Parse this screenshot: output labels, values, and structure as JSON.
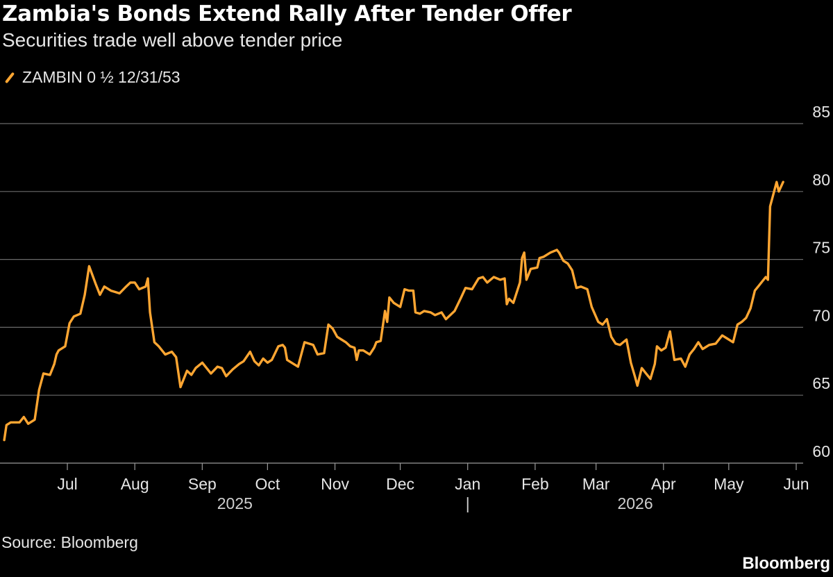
{
  "chart_data": {
    "type": "line",
    "title": "Zambia's Bonds Extend Rally After Tender Offer",
    "subtitle": "Securities trade well above tender price",
    "source": "Source: Bloomberg",
    "brand": "Bloomberg",
    "series": [
      {
        "name": "ZAMBIN 0 ½ 12/31/53",
        "color": "#ffa632",
        "values": [
          [
            "2025-06-02",
            61.7
          ],
          [
            "2025-06-03",
            62.8
          ],
          [
            "2025-06-05",
            63.0
          ],
          [
            "2025-06-09",
            63.0
          ],
          [
            "2025-06-11",
            63.4
          ],
          [
            "2025-06-13",
            62.9
          ],
          [
            "2025-06-16",
            63.2
          ],
          [
            "2025-06-18",
            65.4
          ],
          [
            "2025-06-20",
            66.6
          ],
          [
            "2025-06-23",
            66.5
          ],
          [
            "2025-06-25",
            67.3
          ],
          [
            "2025-06-26",
            68.0
          ],
          [
            "2025-06-27",
            68.3
          ],
          [
            "2025-06-30",
            68.6
          ],
          [
            "2025-07-02",
            70.3
          ],
          [
            "2025-07-04",
            70.8
          ],
          [
            "2025-07-07",
            71.0
          ],
          [
            "2025-07-09",
            72.4
          ],
          [
            "2025-07-11",
            74.5
          ],
          [
            "2025-07-14",
            73.2
          ],
          [
            "2025-07-16",
            72.4
          ],
          [
            "2025-07-18",
            73.0
          ],
          [
            "2025-07-21",
            72.7
          ],
          [
            "2025-07-23",
            72.6
          ],
          [
            "2025-07-25",
            72.5
          ],
          [
            "2025-07-28",
            73.0
          ],
          [
            "2025-07-30",
            73.3
          ],
          [
            "2025-08-01",
            73.3
          ],
          [
            "2025-08-03",
            72.8
          ],
          [
            "2025-08-06",
            73.0
          ],
          [
            "2025-08-07",
            73.6
          ],
          [
            "2025-08-08",
            71.1
          ],
          [
            "2025-08-10",
            68.9
          ],
          [
            "2025-08-12",
            68.6
          ],
          [
            "2025-08-15",
            68.0
          ],
          [
            "2025-08-18",
            68.2
          ],
          [
            "2025-08-20",
            67.8
          ],
          [
            "2025-08-22",
            65.6
          ],
          [
            "2025-08-25",
            66.8
          ],
          [
            "2025-08-27",
            66.5
          ],
          [
            "2025-08-29",
            67.0
          ],
          [
            "2025-09-01",
            67.4
          ],
          [
            "2025-09-03",
            67.0
          ],
          [
            "2025-09-05",
            66.6
          ],
          [
            "2025-09-08",
            67.1
          ],
          [
            "2025-09-10",
            67.0
          ],
          [
            "2025-09-12",
            66.4
          ],
          [
            "2025-09-15",
            66.9
          ],
          [
            "2025-09-18",
            67.3
          ],
          [
            "2025-09-20",
            67.5
          ],
          [
            "2025-09-23",
            68.2
          ],
          [
            "2025-09-25",
            67.5
          ],
          [
            "2025-09-27",
            67.2
          ],
          [
            "2025-09-29",
            67.7
          ],
          [
            "2025-10-01",
            67.4
          ],
          [
            "2025-10-03",
            67.6
          ],
          [
            "2025-10-06",
            68.6
          ],
          [
            "2025-10-08",
            68.7
          ],
          [
            "2025-10-09",
            68.5
          ],
          [
            "2025-10-10",
            67.6
          ],
          [
            "2025-10-13",
            67.3
          ],
          [
            "2025-10-15",
            67.1
          ],
          [
            "2025-10-18",
            68.9
          ],
          [
            "2025-10-22",
            68.7
          ],
          [
            "2025-10-24",
            68.0
          ],
          [
            "2025-10-27",
            68.1
          ],
          [
            "2025-10-29",
            70.2
          ],
          [
            "2025-10-31",
            69.9
          ],
          [
            "2025-11-02",
            69.3
          ],
          [
            "2025-11-04",
            69.1
          ],
          [
            "2025-11-06",
            68.9
          ],
          [
            "2025-11-08",
            68.6
          ],
          [
            "2025-11-10",
            68.5
          ],
          [
            "2025-11-11",
            67.6
          ],
          [
            "2025-11-12",
            68.3
          ],
          [
            "2025-11-14",
            68.3
          ],
          [
            "2025-11-17",
            68.0
          ],
          [
            "2025-11-19",
            68.5
          ],
          [
            "2025-11-20",
            68.9
          ],
          [
            "2025-11-22",
            69.0
          ],
          [
            "2025-11-24",
            71.2
          ],
          [
            "2025-11-25",
            70.4
          ],
          [
            "2025-11-26",
            72.2
          ],
          [
            "2025-11-28",
            71.8
          ],
          [
            "2025-12-01",
            71.5
          ],
          [
            "2025-12-03",
            72.8
          ],
          [
            "2025-12-05",
            72.7
          ],
          [
            "2025-12-07",
            72.7
          ],
          [
            "2025-12-08",
            71.1
          ],
          [
            "2025-12-10",
            71.0
          ],
          [
            "2025-12-12",
            71.2
          ],
          [
            "2025-12-15",
            71.1
          ],
          [
            "2025-12-17",
            70.9
          ],
          [
            "2025-12-20",
            71.1
          ],
          [
            "2025-12-22",
            70.6
          ],
          [
            "2025-12-26",
            71.2
          ],
          [
            "2025-12-29",
            72.2
          ],
          [
            "2025-12-31",
            72.9
          ],
          [
            "2026-01-03",
            72.8
          ],
          [
            "2026-01-06",
            73.6
          ],
          [
            "2026-01-08",
            73.7
          ],
          [
            "2026-01-10",
            73.3
          ],
          [
            "2026-01-13",
            73.7
          ],
          [
            "2026-01-16",
            73.5
          ],
          [
            "2026-01-18",
            73.6
          ],
          [
            "2026-01-19",
            71.7
          ],
          [
            "2026-01-20",
            72.1
          ],
          [
            "2026-01-22",
            71.8
          ],
          [
            "2026-01-25",
            73.3
          ],
          [
            "2026-01-26",
            75.1
          ],
          [
            "2026-01-27",
            75.5
          ],
          [
            "2026-01-28",
            73.5
          ],
          [
            "2026-01-30",
            74.3
          ],
          [
            "2026-02-02",
            74.4
          ],
          [
            "2026-02-03",
            75.1
          ],
          [
            "2026-02-05",
            75.2
          ],
          [
            "2026-02-08",
            75.5
          ],
          [
            "2026-02-11",
            75.7
          ],
          [
            "2026-02-12",
            75.5
          ],
          [
            "2026-02-14",
            74.9
          ],
          [
            "2026-02-16",
            74.7
          ],
          [
            "2026-02-18",
            74.2
          ],
          [
            "2026-02-20",
            72.9
          ],
          [
            "2026-02-22",
            73.0
          ],
          [
            "2026-02-25",
            72.8
          ],
          [
            "2026-02-27",
            71.5
          ],
          [
            "2026-03-02",
            70.4
          ],
          [
            "2026-03-04",
            70.2
          ],
          [
            "2026-03-06",
            70.6
          ],
          [
            "2026-03-08",
            69.3
          ],
          [
            "2026-03-10",
            68.8
          ],
          [
            "2026-03-12",
            68.7
          ],
          [
            "2026-03-15",
            69.1
          ],
          [
            "2026-03-17",
            67.4
          ],
          [
            "2026-03-19",
            66.3
          ],
          [
            "2026-03-20",
            65.7
          ],
          [
            "2026-03-22",
            67.0
          ],
          [
            "2026-03-24",
            66.6
          ],
          [
            "2026-03-26",
            66.2
          ],
          [
            "2026-03-28",
            67.3
          ],
          [
            "2026-03-29",
            68.6
          ],
          [
            "2026-03-31",
            68.3
          ],
          [
            "2026-04-02",
            68.5
          ],
          [
            "2026-04-04",
            69.7
          ],
          [
            "2026-04-06",
            67.6
          ],
          [
            "2026-04-09",
            67.7
          ],
          [
            "2026-04-11",
            67.1
          ],
          [
            "2026-04-13",
            68.0
          ],
          [
            "2026-04-15",
            68.4
          ],
          [
            "2026-04-17",
            68.9
          ],
          [
            "2026-04-19",
            68.4
          ],
          [
            "2026-04-22",
            68.7
          ],
          [
            "2026-04-25",
            68.8
          ],
          [
            "2026-04-28",
            69.4
          ],
          [
            "2026-04-30",
            69.2
          ],
          [
            "2026-05-03",
            68.9
          ],
          [
            "2026-05-05",
            70.2
          ],
          [
            "2026-05-07",
            70.4
          ],
          [
            "2026-05-09",
            70.7
          ],
          [
            "2026-05-11",
            71.4
          ],
          [
            "2026-05-13",
            72.7
          ],
          [
            "2026-05-15",
            73.1
          ],
          [
            "2026-05-18",
            73.7
          ],
          [
            "2026-05-19",
            73.5
          ],
          [
            "2026-05-20",
            78.9
          ],
          [
            "2026-05-23",
            80.7
          ],
          [
            "2026-05-24",
            80.0
          ],
          [
            "2026-05-26",
            80.7
          ]
        ]
      }
    ],
    "x_ticks": [
      {
        "label": "Jul",
        "date": "2025-07-01"
      },
      {
        "label": "Aug",
        "date": "2025-08-01"
      },
      {
        "label": "Sep",
        "date": "2025-09-01"
      },
      {
        "label": "Oct",
        "date": "2025-10-01"
      },
      {
        "label": "Nov",
        "date": "2025-11-01"
      },
      {
        "label": "Dec",
        "date": "2025-12-01"
      },
      {
        "label": "Jan",
        "date": "2026-01-01"
      },
      {
        "label": "Feb",
        "date": "2026-02-01"
      },
      {
        "label": "Mar",
        "date": "2026-03-01"
      },
      {
        "label": "Apr",
        "date": "2026-04-01"
      },
      {
        "label": "May",
        "date": "2026-05-01"
      },
      {
        "label": "Jun",
        "date": "2026-06-01"
      }
    ],
    "year_labels": [
      {
        "label": "2025",
        "date": "2025-09-16"
      },
      {
        "label": "|",
        "date": "2026-01-01"
      },
      {
        "label": "2026",
        "date": "2026-03-19"
      }
    ],
    "y_ticks": [
      60,
      65,
      70,
      75,
      80,
      85
    ],
    "ylim": [
      60,
      85
    ],
    "xlim": [
      "2025-06-01",
      "2026-06-01"
    ],
    "grid": true,
    "legend_position": "top-left",
    "yaxis_side": "right"
  }
}
